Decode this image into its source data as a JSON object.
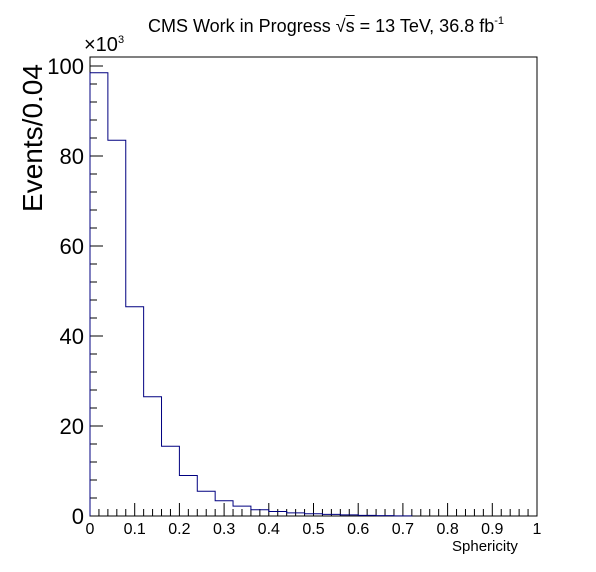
{
  "chart_data": {
    "type": "bar",
    "title": {
      "prefix": "CMS Work in Progress ",
      "sqrt_symbol": "√",
      "sqrt_arg": "s",
      "energy": " = 13 TeV, 36.8 fb",
      "lumi_exponent": "-1"
    },
    "y_multiplier": {
      "base": "×10",
      "exponent": "3"
    },
    "ylabel": "Events/0.04",
    "xlabel": "Sphericity",
    "xlim": [
      0,
      1
    ],
    "ylim": [
      0,
      102
    ],
    "bin_width": 0.04,
    "bin_edges": [
      0,
      0.04,
      0.08,
      0.12,
      0.16,
      0.2,
      0.24,
      0.28,
      0.32,
      0.36,
      0.4,
      0.44,
      0.48,
      0.52,
      0.56,
      0.6,
      0.64,
      0.68,
      0.72
    ],
    "values": [
      98.5,
      83.5,
      46.5,
      26.5,
      15.5,
      9.0,
      5.5,
      3.4,
      2.2,
      1.4,
      1.0,
      0.7,
      0.5,
      0.35,
      0.25,
      0.15,
      0.08,
      0.04
    ],
    "x_ticks": [
      "0",
      "0.1",
      "0.2",
      "0.3",
      "0.4",
      "0.5",
      "0.6",
      "0.7",
      "0.8",
      "0.9",
      "1"
    ],
    "y_ticks": [
      "0",
      "20",
      "40",
      "60",
      "80",
      "100"
    ],
    "line_color": "#000080",
    "legend": "none",
    "grid": false
  }
}
